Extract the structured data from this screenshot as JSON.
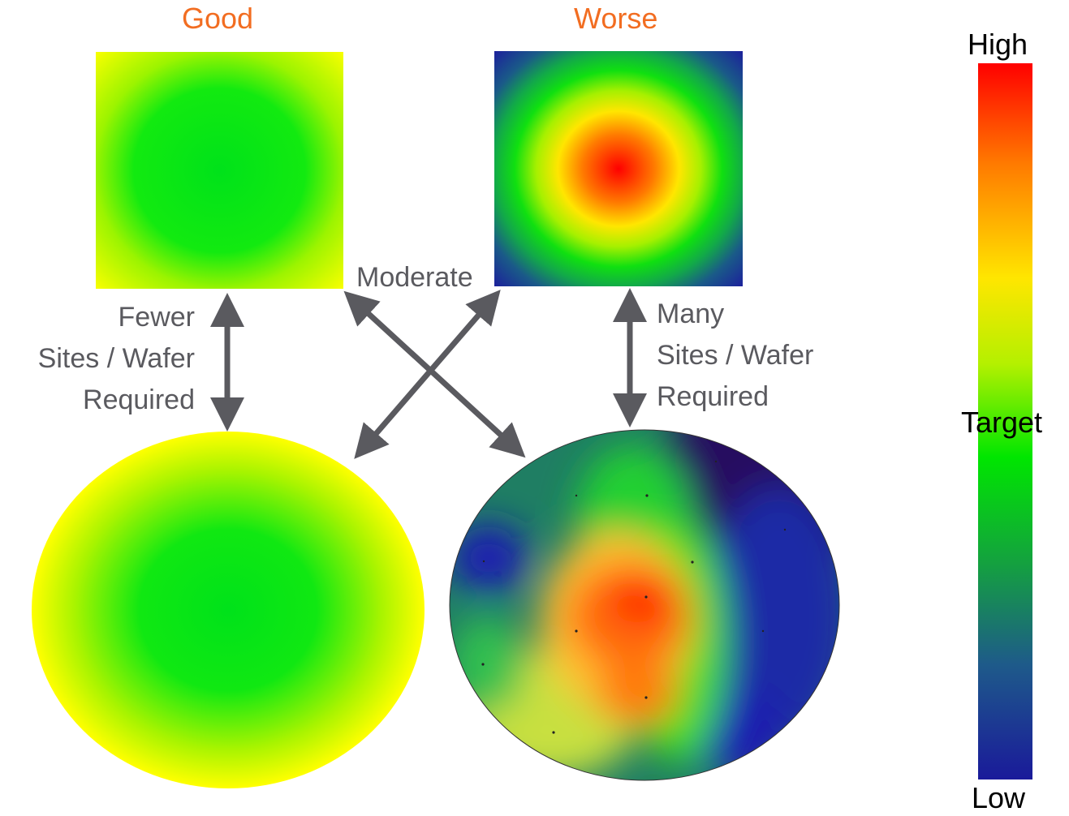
{
  "colors": {
    "heading": "#f26d21",
    "label": "#5a5a5f",
    "arrow": "#5a5a5f",
    "scale_high": "#ff0000",
    "scale_target": "#00e600",
    "scale_low": "#1a1a9a"
  },
  "headings": {
    "good": "Good",
    "worse": "Worse"
  },
  "labels": {
    "fewer": [
      "Fewer",
      "Sites / Wafer",
      "Required"
    ],
    "many": [
      "Many",
      "Sites / Wafer",
      "Required"
    ],
    "moderate": "Moderate"
  },
  "color_scale": {
    "high": "High",
    "target": "Target",
    "low": "Low"
  },
  "panels": [
    {
      "name": "good-square-map",
      "pattern": "uniform-green-yellow-corners"
    },
    {
      "name": "worse-square-map",
      "pattern": "radial-red-center-blue-corners"
    },
    {
      "name": "good-wafer-map",
      "pattern": "uniform-green-yellow-edge"
    },
    {
      "name": "worse-wafer-map",
      "pattern": "irregular-multi-hotspot"
    }
  ]
}
